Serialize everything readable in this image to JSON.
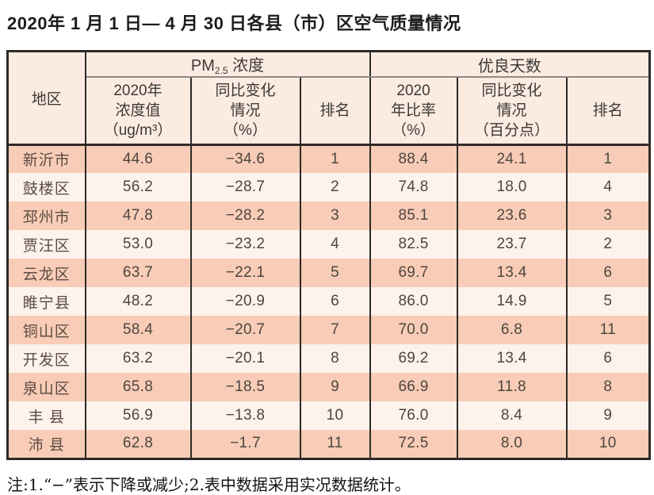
{
  "title": "2020年 1 月 1 日— 4 月 30 日各县（市）区空气质量情况",
  "table": {
    "columns": {
      "region": "地区",
      "pm_group": {
        "prefix": "PM",
        "sub": "2.5",
        "suffix": " 浓度"
      },
      "good_days_group": "优良天数",
      "pm_value_lines": [
        "2020年",
        "浓度值",
        "（ug/m³）"
      ],
      "pm_change_lines": [
        "同比变化",
        "情况",
        "（%）"
      ],
      "pm_rank": "排名",
      "gd_rate_lines": [
        "2020",
        "年比率",
        "（%）"
      ],
      "gd_change_lines": [
        "同比变化",
        "情况",
        "（百分点）"
      ],
      "gd_rank": "排名"
    },
    "rows": [
      {
        "region": "新沂市",
        "pm_value": "44.6",
        "pm_change": "−34.6",
        "pm_rank": "1",
        "gd_rate": "88.4",
        "gd_change": "24.1",
        "gd_rank": "1"
      },
      {
        "region": "鼓楼区",
        "pm_value": "56.2",
        "pm_change": "−28.7",
        "pm_rank": "2",
        "gd_rate": "74.8",
        "gd_change": "18.0",
        "gd_rank": "4"
      },
      {
        "region": "邳州市",
        "pm_value": "47.8",
        "pm_change": "−28.2",
        "pm_rank": "3",
        "gd_rate": "85.1",
        "gd_change": "23.6",
        "gd_rank": "3"
      },
      {
        "region": "贾汪区",
        "pm_value": "53.0",
        "pm_change": "−23.2",
        "pm_rank": "4",
        "gd_rate": "82.5",
        "gd_change": "23.7",
        "gd_rank": "2"
      },
      {
        "region": "云龙区",
        "pm_value": "63.7",
        "pm_change": "−22.1",
        "pm_rank": "5",
        "gd_rate": "69.7",
        "gd_change": "13.4",
        "gd_rank": "6"
      },
      {
        "region": "睢宁县",
        "pm_value": "48.2",
        "pm_change": "−20.9",
        "pm_rank": "6",
        "gd_rate": "86.0",
        "gd_change": "14.9",
        "gd_rank": "5"
      },
      {
        "region": "铜山区",
        "pm_value": "58.4",
        "pm_change": "−20.7",
        "pm_rank": "7",
        "gd_rate": "70.0",
        "gd_change": "6.8",
        "gd_rank": "11"
      },
      {
        "region": "开发区",
        "pm_value": "63.2",
        "pm_change": "−20.1",
        "pm_rank": "8",
        "gd_rate": "69.2",
        "gd_change": "13.4",
        "gd_rank": "6"
      },
      {
        "region": "泉山区",
        "pm_value": "65.8",
        "pm_change": "−18.5",
        "pm_rank": "9",
        "gd_rate": "66.9",
        "gd_change": "11.8",
        "gd_rank": "8"
      },
      {
        "region": "丰 县",
        "pm_value": "56.9",
        "pm_change": "−13.8",
        "pm_rank": "10",
        "gd_rate": "76.0",
        "gd_change": "8.4",
        "gd_rank": "9"
      },
      {
        "region": "沛 县",
        "pm_value": "62.8",
        "pm_change": "−1.7",
        "pm_rank": "11",
        "gd_rate": "72.5",
        "gd_change": "8.0",
        "gd_rank": "10"
      }
    ]
  },
  "footnote": "注:1.“−”表示下降或减少;2.表中数据采用实况数据统计。"
}
